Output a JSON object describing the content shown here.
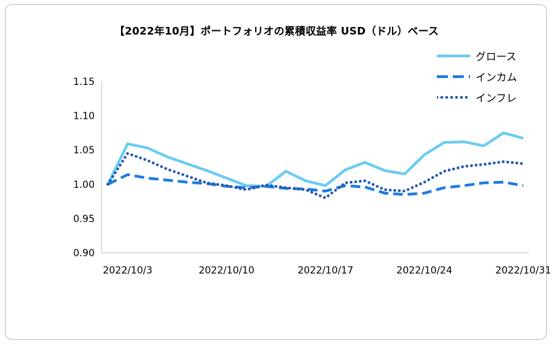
{
  "chart_data": {
    "type": "line",
    "title": "【2022年10月】ポートフォリオの累積収益率 USD（ドル）ベース",
    "xlabel": "",
    "ylabel": "",
    "x_tick_labels": [
      "2022/10/3",
      "2022/10/10",
      "2022/10/17",
      "2022/10/24",
      "2022/10/31"
    ],
    "y_tick_labels": [
      "1.15",
      "1.10",
      "1.05",
      "1.00",
      "0.95",
      "0.90"
    ],
    "ylim": [
      0.9,
      1.15
    ],
    "grid": false,
    "legend_position": "top-right",
    "x": [
      "2022/9/30",
      "2022/10/3",
      "2022/10/4",
      "2022/10/5",
      "2022/10/6",
      "2022/10/7",
      "2022/10/10",
      "2022/10/11",
      "2022/10/12",
      "2022/10/13",
      "2022/10/14",
      "2022/10/17",
      "2022/10/18",
      "2022/10/19",
      "2022/10/20",
      "2022/10/21",
      "2022/10/24",
      "2022/10/25",
      "2022/10/26",
      "2022/10/27",
      "2022/10/28",
      "2022/10/31"
    ],
    "series": [
      {
        "name": "グロース",
        "color": "#6ccbf2",
        "dash": "solid",
        "values": [
          1.0,
          1.059,
          1.053,
          1.04,
          1.03,
          1.02,
          1.009,
          0.998,
          0.997,
          1.019,
          1.005,
          0.998,
          1.021,
          1.032,
          1.02,
          1.015,
          1.043,
          1.061,
          1.062,
          1.056,
          1.075,
          1.067
        ]
      },
      {
        "name": "インカム",
        "color": "#1f7be0",
        "dash": "dashed",
        "values": [
          1.0,
          1.014,
          1.009,
          1.006,
          1.003,
          1.001,
          0.997,
          0.995,
          0.997,
          0.994,
          0.993,
          0.99,
          0.998,
          0.996,
          0.987,
          0.985,
          0.987,
          0.995,
          0.998,
          1.002,
          1.003,
          0.998
        ]
      },
      {
        "name": "インフレ",
        "color": "#2658b0",
        "dash": "dotted",
        "values": [
          1.0,
          1.045,
          1.035,
          1.022,
          1.012,
          1.002,
          0.998,
          0.992,
          0.999,
          0.995,
          0.992,
          0.98,
          1.002,
          1.005,
          0.992,
          0.99,
          1.003,
          1.019,
          1.026,
          1.029,
          1.033,
          1.03
        ]
      }
    ]
  }
}
